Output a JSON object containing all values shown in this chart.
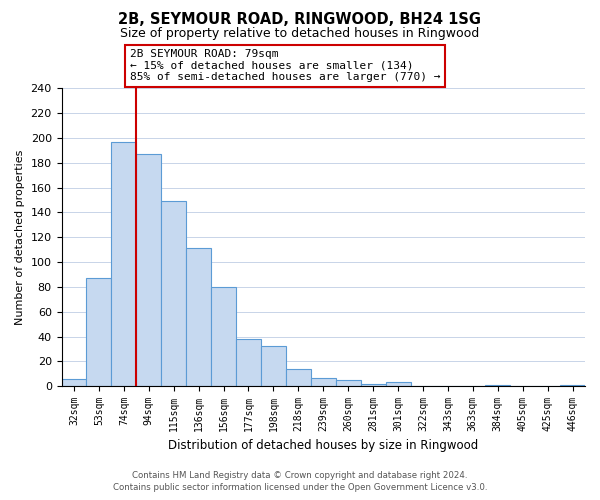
{
  "title": "2B, SEYMOUR ROAD, RINGWOOD, BH24 1SG",
  "subtitle": "Size of property relative to detached houses in Ringwood",
  "xlabel": "Distribution of detached houses by size in Ringwood",
  "ylabel": "Number of detached properties",
  "bin_labels": [
    "32sqm",
    "53sqm",
    "74sqm",
    "94sqm",
    "115sqm",
    "136sqm",
    "156sqm",
    "177sqm",
    "198sqm",
    "218sqm",
    "239sqm",
    "260sqm",
    "281sqm",
    "301sqm",
    "322sqm",
    "343sqm",
    "363sqm",
    "384sqm",
    "405sqm",
    "425sqm",
    "446sqm"
  ],
  "bar_values": [
    6,
    87,
    197,
    187,
    149,
    111,
    80,
    38,
    32,
    14,
    7,
    5,
    2,
    3,
    0,
    0,
    0,
    1,
    0,
    0,
    1
  ],
  "bar_color": "#c6d9f0",
  "bar_edge_color": "#5b9bd5",
  "annotation_text": "2B SEYMOUR ROAD: 79sqm\n← 15% of detached houses are smaller (134)\n85% of semi-detached houses are larger (770) →",
  "annotation_box_color": "#ffffff",
  "annotation_box_edge": "#cc0000",
  "line_color": "#cc0000",
  "ylim": [
    0,
    240
  ],
  "yticks": [
    0,
    20,
    40,
    60,
    80,
    100,
    120,
    140,
    160,
    180,
    200,
    220,
    240
  ],
  "footer_line1": "Contains HM Land Registry data © Crown copyright and database right 2024.",
  "footer_line2": "Contains public sector information licensed under the Open Government Licence v3.0.",
  "background_color": "#ffffff",
  "grid_color": "#c8d4e8"
}
